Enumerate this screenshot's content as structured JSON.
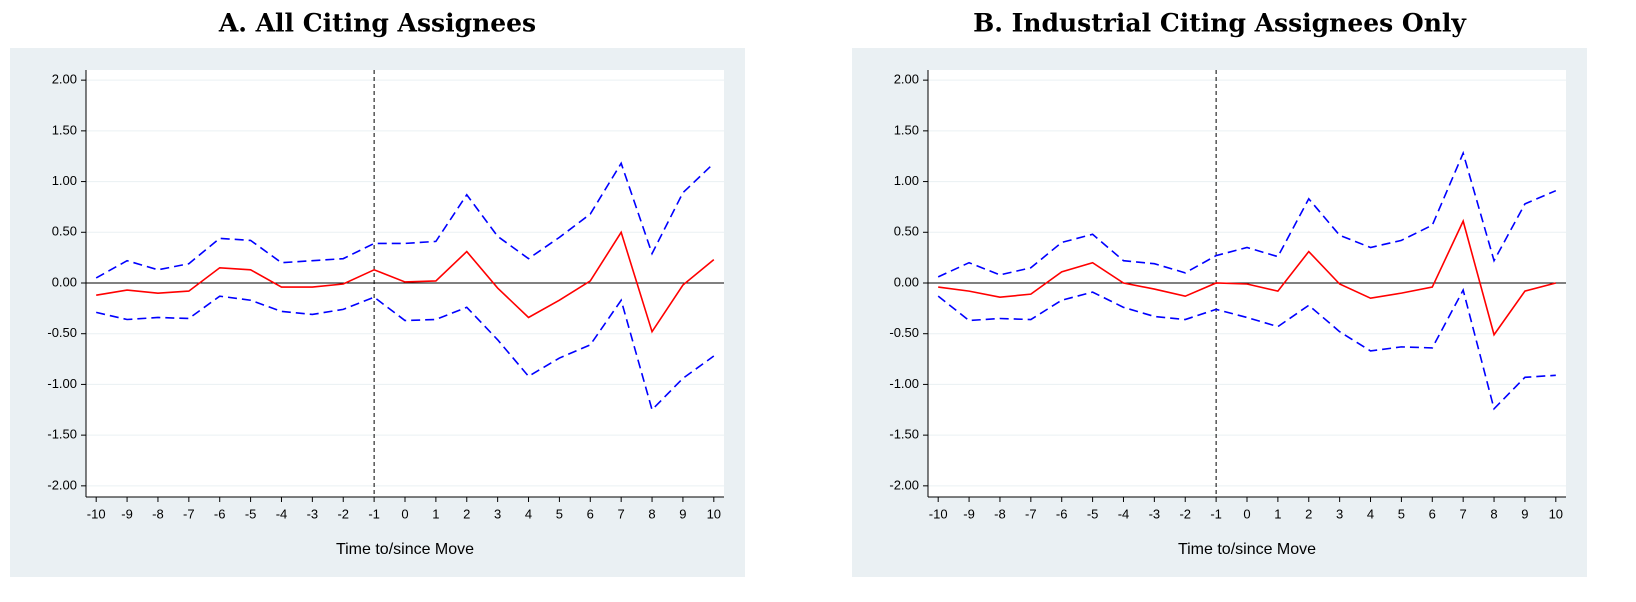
{
  "chart_data": [
    {
      "type": "line",
      "title": "A. All Citing Assignees",
      "x_label": "Time to/since Move",
      "x": [
        -10,
        -9,
        -8,
        -7,
        -6,
        -5,
        -4,
        -3,
        -2,
        -1,
        0,
        1,
        2,
        3,
        4,
        5,
        6,
        7,
        8,
        9,
        10
      ],
      "series": [
        {
          "color": "#0000ff",
          "dash": "dashed",
          "values": [
            0.05,
            0.22,
            0.13,
            0.19,
            0.44,
            0.42,
            0.2,
            0.22,
            0.24,
            0.39,
            0.39,
            0.41,
            0.87,
            0.46,
            0.24,
            0.45,
            0.68,
            1.18,
            0.29,
            0.89,
            1.18
          ]
        },
        {
          "color": "#ff0000",
          "dash": "solid",
          "values": [
            -0.12,
            -0.07,
            -0.1,
            -0.08,
            0.15,
            0.13,
            -0.04,
            -0.04,
            -0.01,
            0.13,
            0.01,
            0.02,
            0.31,
            -0.05,
            -0.34,
            -0.17,
            0.02,
            0.5,
            -0.48,
            -0.02,
            0.23
          ]
        },
        {
          "color": "#0000ff",
          "dash": "dashed",
          "values": [
            -0.29,
            -0.36,
            -0.34,
            -0.35,
            -0.13,
            -0.17,
            -0.28,
            -0.31,
            -0.26,
            -0.14,
            -0.37,
            -0.36,
            -0.24,
            -0.56,
            -0.92,
            -0.74,
            -0.61,
            -0.17,
            -1.25,
            -0.94,
            -0.72
          ]
        }
      ],
      "xlim": [
        -10.33,
        10.33
      ],
      "xticks": [
        -10,
        -9,
        -8,
        -7,
        -6,
        -5,
        -4,
        -3,
        -2,
        -1,
        0,
        1,
        2,
        3,
        4,
        5,
        6,
        7,
        8,
        9,
        10
      ],
      "ylim": [
        -2.11,
        2.1
      ],
      "yticks": [
        {
          "value": 2,
          "label": "2.00"
        },
        {
          "value": 1.5,
          "label": "1.50"
        },
        {
          "value": 1,
          "label": "1.00"
        },
        {
          "value": 0.5,
          "label": "0.50"
        },
        {
          "value": 0,
          "label": "0.00"
        },
        {
          "value": -0.5,
          "label": "-0.50"
        },
        {
          "value": -1,
          "label": "-1.00"
        },
        {
          "value": -1.5,
          "label": "-1.50"
        },
        {
          "value": -2,
          "label": "-2.00"
        }
      ],
      "grid": true,
      "vline": -1,
      "hline": 0
    },
    {
      "type": "line",
      "title": "B. Industrial Citing Assignees Only",
      "x_label": "Time to/since Move",
      "x": [
        -10,
        -9,
        -8,
        -7,
        -6,
        -5,
        -4,
        -3,
        -2,
        -1,
        0,
        1,
        2,
        3,
        4,
        5,
        6,
        7,
        8,
        9,
        10
      ],
      "series": [
        {
          "color": "#0000ff",
          "dash": "dashed",
          "values": [
            0.06,
            0.2,
            0.08,
            0.15,
            0.4,
            0.48,
            0.22,
            0.19,
            0.1,
            0.27,
            0.35,
            0.26,
            0.83,
            0.47,
            0.35,
            0.42,
            0.57,
            1.28,
            0.22,
            0.78,
            0.91
          ]
        },
        {
          "color": "#ff0000",
          "dash": "solid",
          "values": [
            -0.04,
            -0.08,
            -0.14,
            -0.11,
            0.11,
            0.2,
            0,
            -0.06,
            -0.13,
            0,
            -0.01,
            -0.08,
            0.31,
            -0.01,
            -0.15,
            -0.1,
            -0.04,
            0.61,
            -0.51,
            -0.08,
            0
          ]
        },
        {
          "color": "#0000ff",
          "dash": "dashed",
          "values": [
            -0.13,
            -0.37,
            -0.35,
            -0.36,
            -0.17,
            -0.09,
            -0.24,
            -0.33,
            -0.36,
            -0.26,
            -0.34,
            -0.43,
            -0.22,
            -0.48,
            -0.67,
            -0.63,
            -0.64,
            -0.07,
            -1.24,
            -0.93,
            -0.91
          ]
        }
      ],
      "xlim": [
        -10.33,
        10.33
      ],
      "xticks": [
        -10,
        -9,
        -8,
        -7,
        -6,
        -5,
        -4,
        -3,
        -2,
        -1,
        0,
        1,
        2,
        3,
        4,
        5,
        6,
        7,
        8,
        9,
        10
      ],
      "ylim": [
        -2.11,
        2.1
      ],
      "yticks": [
        {
          "value": 2,
          "label": "2.00"
        },
        {
          "value": 1.5,
          "label": "1.50"
        },
        {
          "value": 1,
          "label": "1.00"
        },
        {
          "value": 0.5,
          "label": "0.50"
        },
        {
          "value": 0,
          "label": "0.00"
        },
        {
          "value": -0.5,
          "label": "-0.50"
        },
        {
          "value": -1,
          "label": "-1.00"
        },
        {
          "value": -1.5,
          "label": "-1.50"
        },
        {
          "value": -2,
          "label": "-2.00"
        }
      ],
      "grid": true,
      "vline": -1,
      "hline": 0
    }
  ]
}
